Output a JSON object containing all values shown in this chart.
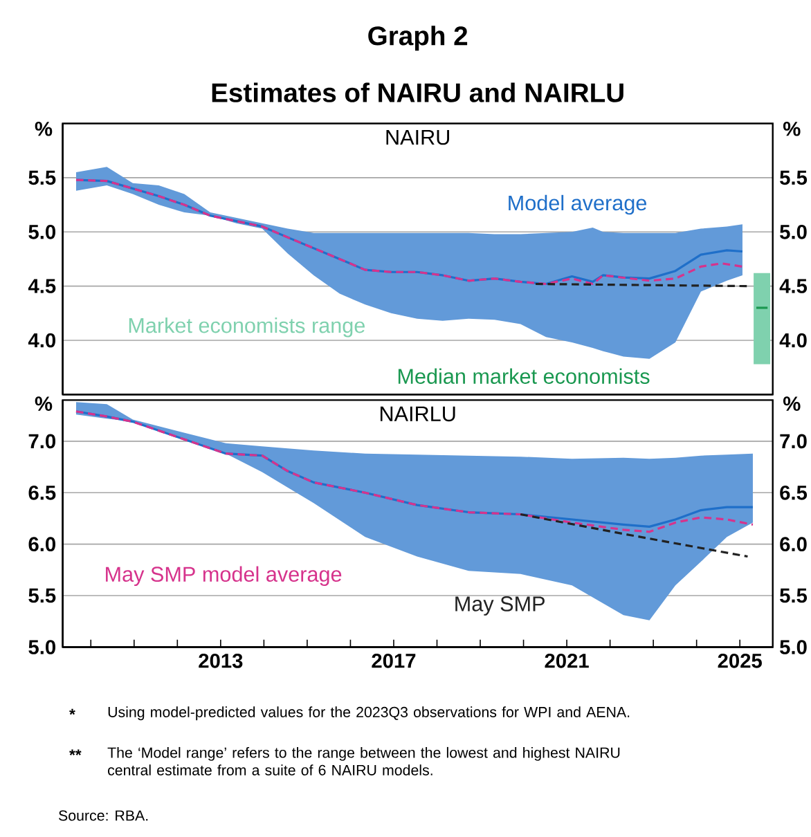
{
  "chart_data": [
    {
      "type": "line",
      "title": "Graph 2",
      "subtitle": "Estimates of NAIRU and NAIRLU",
      "ylabel": "%",
      "y2label": "%",
      "xlim": [
        2009.35,
        2025.76
      ],
      "ylim": [
        3.5,
        6.0
      ],
      "yticks": [
        {
          "value": 4.0,
          "label": "4.0"
        },
        {
          "value": 4.5,
          "label": "4.5"
        },
        {
          "value": 5.0,
          "label": "5.0"
        },
        {
          "value": 5.5,
          "label": "5.5"
        }
      ],
      "y2lim": [
        3.5,
        6.0
      ],
      "y2ticks": [
        {
          "value": 4.0,
          "label": "4.0"
        },
        {
          "value": 4.5,
          "label": "4.5"
        },
        {
          "value": 5.0,
          "label": "5.0"
        },
        {
          "value": 5.5,
          "label": "5.5"
        }
      ],
      "grid": "y",
      "tick_labels": "y",
      "annotations": [
        "NAIRU"
      ],
      "series": [
        {
          "type": "line",
          "name": "Model average",
          "color": "#1f6fc9",
          "line_style": "solid",
          "x": [
            2009.66,
            2010.37,
            2010.97,
            2011.57,
            2012.16,
            2012.76,
            2013.36,
            2013.96,
            2014.55,
            2015.15,
            2015.75,
            2016.34,
            2016.94,
            2017.54,
            2018.13,
            2018.73,
            2019.33,
            2019.93,
            2020.52,
            2021.12,
            2021.6,
            2021.84,
            2022.31,
            2022.91,
            2023.51,
            2024.1,
            2024.7,
            2025.06
          ],
          "values": [
            5.48,
            5.47,
            5.4,
            5.33,
            5.25,
            5.15,
            5.1,
            5.05,
            4.95,
            4.85,
            4.75,
            4.65,
            4.63,
            4.63,
            4.6,
            4.55,
            4.57,
            4.54,
            4.52,
            4.59,
            4.54,
            4.6,
            4.58,
            4.57,
            4.64,
            4.79,
            4.83,
            4.82
          ],
          "upper": [
            5.55,
            5.6,
            5.45,
            5.43,
            5.35,
            5.18,
            5.13,
            5.08,
            5.03,
            4.99,
            4.99,
            4.99,
            4.99,
            4.99,
            4.99,
            4.99,
            4.98,
            4.98,
            4.99,
            5.0,
            5.04,
            5.0,
            4.99,
            4.99,
            4.99,
            5.03,
            5.05,
            5.07
          ],
          "lower": [
            5.38,
            5.43,
            5.35,
            5.25,
            5.18,
            5.15,
            5.08,
            5.03,
            4.8,
            4.6,
            4.43,
            4.33,
            4.25,
            4.2,
            4.18,
            4.2,
            4.19,
            4.15,
            4.03,
            3.98,
            3.93,
            3.9,
            3.85,
            3.83,
            3.98,
            4.45,
            4.55,
            4.6
          ]
        },
        {
          "type": "line",
          "color": "#d6338c",
          "line_style": "dashed",
          "x": [
            2009.66,
            2010.37,
            2010.97,
            2011.57,
            2012.16,
            2012.76,
            2013.36,
            2013.96,
            2014.55,
            2015.15,
            2015.75,
            2016.34,
            2016.94,
            2017.54,
            2018.13,
            2018.73,
            2019.33,
            2019.93,
            2020.52,
            2021.12,
            2021.6,
            2021.84,
            2022.91,
            2023.51,
            2024.1,
            2024.58,
            2025.06
          ],
          "values": [
            5.48,
            5.47,
            5.4,
            5.33,
            5.25,
            5.15,
            5.1,
            5.05,
            4.95,
            4.85,
            4.75,
            4.65,
            4.63,
            4.63,
            4.6,
            4.55,
            4.57,
            4.54,
            4.52,
            4.57,
            4.52,
            4.6,
            4.55,
            4.57,
            4.68,
            4.71,
            4.68
          ]
        },
        {
          "type": "line",
          "color": "#222222",
          "line_style": "dashed",
          "x": [
            2020.28,
            2025.18
          ],
          "values": [
            4.52,
            4.5
          ]
        },
        {
          "type": "bar",
          "name": "Market economists range",
          "color": "#7fd1ae",
          "x": [
            2025.51
          ],
          "base": [
            3.78
          ],
          "values": [
            0.84
          ]
        },
        {
          "type": "line",
          "name": "Median market economists",
          "color": "#1a9850",
          "line_style": "solid",
          "x": [
            2025.38,
            2025.64
          ],
          "values": [
            4.3,
            4.3
          ]
        }
      ]
    },
    {
      "type": "line",
      "ylabel": "%",
      "y2label": "%",
      "xlim": [
        2009.35,
        2025.76
      ],
      "ylim": [
        5.0,
        7.4
      ],
      "xticks": [
        {
          "value": 2010,
          "label": null
        },
        {
          "value": 2011,
          "label": null
        },
        {
          "value": 2012,
          "label": null
        },
        2013,
        {
          "value": 2014,
          "label": null
        },
        {
          "value": 2015,
          "label": null
        },
        {
          "value": 2016,
          "label": null
        },
        2017,
        {
          "value": 2018,
          "label": null
        },
        {
          "value": 2019,
          "label": null
        },
        {
          "value": 2020,
          "label": null
        },
        2021,
        {
          "value": 2022,
          "label": null
        },
        {
          "value": 2023,
          "label": null
        },
        {
          "value": 2024,
          "label": null
        },
        2025
      ],
      "yticks": [
        {
          "value": 5.0,
          "label": "5.0"
        },
        {
          "value": 5.5,
          "label": "5.5"
        },
        {
          "value": 6.0,
          "label": "6.0"
        },
        {
          "value": 6.5,
          "label": "6.5"
        },
        {
          "value": 7.0,
          "label": "7.0"
        }
      ],
      "y2lim": [
        5.0,
        7.4
      ],
      "y2ticks": [
        {
          "value": 5.0,
          "label": "5.0"
        },
        {
          "value": 5.5,
          "label": "5.5"
        },
        {
          "value": 6.0,
          "label": "6.0"
        },
        {
          "value": 6.5,
          "label": "6.5"
        },
        {
          "value": 7.0,
          "label": "7.0"
        }
      ],
      "grid": "y",
      "annotations": [
        "NAIRLU",
        "*",
        "Using model-predicted values for the 2023Q3 observations for WPI and AENA.",
        "**",
        "The ‘Model range’ refers to the range between the lowest and highest NAIRU central estimate from a suite of 6 NAIRU models.",
        "Source:  RBA."
      ],
      "series": [
        {
          "type": "line",
          "color": "#1f6fc9",
          "line_style": "solid",
          "x": [
            2009.66,
            2010.37,
            2010.97,
            2013.12,
            2013.96,
            2014.55,
            2015.15,
            2016.34,
            2017.54,
            2018.73,
            2019.93,
            2021.12,
            2022.31,
            2022.91,
            2023.51,
            2024.1,
            2024.7,
            2025.3
          ],
          "values": [
            7.29,
            7.24,
            7.19,
            6.88,
            6.86,
            6.71,
            6.6,
            6.5,
            6.38,
            6.31,
            6.29,
            6.24,
            6.19,
            6.17,
            6.24,
            6.33,
            6.36,
            6.36
          ],
          "upper": [
            7.38,
            7.36,
            7.21,
            6.98,
            6.95,
            6.93,
            6.91,
            6.88,
            6.87,
            6.86,
            6.85,
            6.83,
            6.84,
            6.83,
            6.84,
            6.86,
            6.87,
            6.88
          ],
          "lower": [
            7.26,
            7.22,
            7.19,
            6.88,
            6.7,
            6.55,
            6.4,
            6.07,
            5.88,
            5.74,
            5.71,
            5.6,
            5.31,
            5.26,
            5.6,
            5.83,
            6.07,
            6.21
          ]
        },
        {
          "type": "line",
          "name": "May SMP model average",
          "color": "#d6338c",
          "line_style": "dashed",
          "x": [
            2009.66,
            2010.37,
            2010.97,
            2013.12,
            2013.96,
            2014.55,
            2015.15,
            2016.34,
            2017.54,
            2018.73,
            2019.93,
            2021.12,
            2022.31,
            2022.91,
            2023.51,
            2024.1,
            2024.7,
            2025.3
          ],
          "values": [
            7.29,
            7.24,
            7.19,
            6.88,
            6.86,
            6.71,
            6.6,
            6.5,
            6.38,
            6.31,
            6.29,
            6.21,
            6.14,
            6.12,
            6.21,
            6.26,
            6.24,
            6.19
          ]
        },
        {
          "type": "line",
          "name": "May SMP",
          "color": "#222222",
          "line_style": "dashed",
          "x": [
            2019.93,
            2022.31,
            2025.18
          ],
          "values": [
            6.29,
            6.1,
            5.88
          ]
        }
      ]
    }
  ]
}
